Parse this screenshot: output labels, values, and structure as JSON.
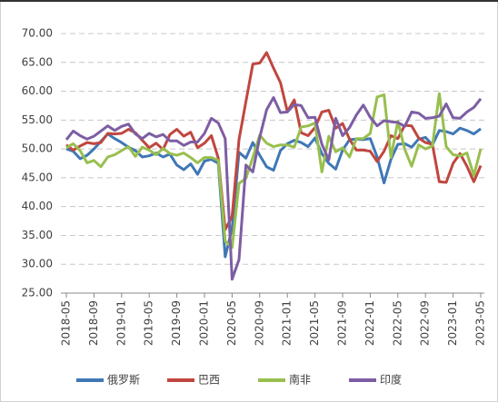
{
  "chart_data": {
    "type": "line",
    "categories": [
      "2018-05",
      null,
      null,
      null,
      "2018-09",
      null,
      null,
      null,
      "2019-01",
      null,
      null,
      null,
      "2019-05",
      null,
      null,
      null,
      "2019-09",
      null,
      null,
      null,
      "2020-01",
      null,
      null,
      null,
      "2020-05",
      null,
      null,
      null,
      "2020-09",
      null,
      null,
      null,
      "2021-01",
      null,
      null,
      null,
      "2021-05",
      null,
      null,
      null,
      "2021-09",
      null,
      null,
      null,
      "2022-01",
      null,
      null,
      null,
      "2022-05",
      null,
      null,
      null,
      "2022-09",
      null,
      null,
      null,
      "2023-01",
      null,
      null,
      null,
      "2023-05"
    ],
    "series": [
      {
        "name": "俄罗斯",
        "color": "#3f78b5",
        "values": [
          50.0,
          49.6,
          48.3,
          48.9,
          50.0,
          51.3,
          52.6,
          51.8,
          51.1,
          50.3,
          49.7,
          48.6,
          48.8,
          49.3,
          48.6,
          49.1,
          47.2,
          46.4,
          47.4,
          45.6,
          47.9,
          48.2,
          47.5,
          31.3,
          36.2,
          49.4,
          48.4,
          51.1,
          48.9,
          46.9,
          46.3,
          49.7,
          50.9,
          51.5,
          51.1,
          50.4,
          51.9,
          49.2,
          47.5,
          46.5,
          49.8,
          51.6,
          51.7,
          51.6,
          51.8,
          48.6,
          44.1,
          48.2,
          50.8,
          50.9,
          50.3,
          51.7,
          52.0,
          50.7,
          53.2,
          53.0,
          52.6,
          53.6,
          53.2,
          52.6,
          53.5
        ]
      },
      {
        "name": "巴西",
        "color": "#c0463f",
        "values": [
          50.7,
          49.8,
          50.5,
          51.1,
          50.9,
          51.1,
          52.7,
          52.6,
          52.7,
          53.4,
          52.8,
          51.5,
          50.2,
          51.0,
          49.9,
          52.5,
          53.4,
          52.2,
          52.9,
          50.2,
          51.0,
          52.3,
          48.4,
          36.0,
          38.3,
          51.6,
          58.2,
          64.7,
          64.9,
          66.7,
          64.0,
          61.5,
          56.5,
          58.5,
          52.8,
          52.3,
          53.7,
          56.4,
          56.7,
          53.6,
          54.4,
          51.7,
          49.8,
          49.8,
          49.6,
          47.8,
          49.6,
          52.3,
          51.8,
          54.1,
          54.0,
          51.9,
          51.1,
          50.8,
          44.3,
          44.2,
          47.5,
          49.2,
          47.0,
          44.3,
          47.1
        ]
      },
      {
        "name": "南非",
        "color": "#98bf4f",
        "values": [
          50.2,
          50.9,
          49.7,
          47.6,
          48.0,
          46.9,
          48.6,
          49.0,
          49.7,
          50.4,
          48.7,
          50.3,
          49.8,
          49.0,
          50.1,
          49.2,
          48.9,
          49.3,
          48.5,
          47.6,
          48.5,
          48.5,
          48.0,
          34.0,
          32.9,
          44.0,
          44.9,
          48.5,
          52.4,
          51.0,
          50.4,
          50.7,
          50.7,
          50.3,
          53.8,
          54.0,
          54.5,
          46.0,
          52.2,
          49.5,
          50.2,
          48.6,
          51.8,
          51.8,
          52.7,
          59.0,
          59.4,
          48.5,
          54.8,
          49.9,
          47.0,
          50.7,
          50.0,
          50.5,
          59.6,
          50.4,
          49.0,
          48.8,
          49.3,
          45.4,
          50.0
        ]
      },
      {
        "name": "印度",
        "color": "#7d5ea3",
        "values": [
          51.6,
          53.1,
          52.3,
          51.7,
          52.2,
          53.1,
          54.0,
          53.2,
          53.9,
          54.3,
          52.6,
          51.8,
          52.7,
          52.1,
          52.5,
          51.4,
          51.4,
          50.6,
          51.2,
          51.2,
          52.7,
          55.3,
          54.5,
          51.8,
          27.4,
          30.8,
          47.2,
          46.0,
          52.0,
          56.8,
          58.9,
          56.3,
          56.4,
          57.7,
          57.5,
          55.4,
          55.5,
          50.8,
          48.1,
          55.3,
          52.3,
          53.7,
          55.9,
          57.6,
          55.5,
          54.0,
          54.9,
          54.7,
          54.6,
          53.9,
          56.4,
          56.2,
          55.3,
          55.4,
          55.7,
          57.8,
          55.4,
          55.3,
          56.4,
          57.2,
          58.7
        ]
      }
    ],
    "ylim": [
      25,
      70
    ],
    "yticks": [
      {
        "value": 25,
        "label": "25.00"
      },
      {
        "value": 30,
        "label": "30.00"
      },
      {
        "value": 35,
        "label": "35.00"
      },
      {
        "value": 40,
        "label": "40.00"
      },
      {
        "value": 45,
        "label": "45.00"
      },
      {
        "value": 50,
        "label": "50.00"
      },
      {
        "value": 55,
        "label": "55.00"
      },
      {
        "value": 60,
        "label": "60.00"
      },
      {
        "value": 65,
        "label": "65.00"
      },
      {
        "value": 70,
        "label": "70.00"
      }
    ],
    "grid": true,
    "legend": "bottom"
  }
}
